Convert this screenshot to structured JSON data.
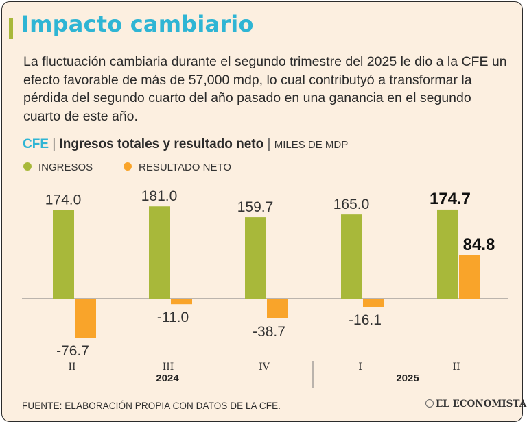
{
  "title": "Impacto cambiario",
  "description": "La fluctuación cambiaria durante el segundo trimestre del 2025 le dio a la CFE un efecto favorable de más de 57,000 mdp, lo cual contributyó a transformar la pérdida del segundo cuarto del año pasado en una ganancia en el segundo cuarto de este año.",
  "chart_header": {
    "brand": "CFE",
    "separator": "|",
    "main": "Ingresos totales y resultado neto",
    "unit": "MILES DE MDP"
  },
  "source": "FUENTE: ELABORACIÓN PROPIA CON DATOS DE LA CFE.",
  "logo_text": "EL ECONOMISTA",
  "colors": {
    "ingresos": "#a8b83a",
    "resultado": "#f9a42a",
    "title": "#2fb5d4",
    "background": "#fcefe0"
  },
  "chart_data": {
    "type": "bar",
    "categories": [
      "II",
      "III",
      "IV",
      "I",
      "II"
    ],
    "value_labels": {
      "ingresos": [
        "174.0",
        "181.0",
        "159.7",
        "165.0",
        "174.7"
      ],
      "resultado": [
        "-76.7",
        "-11.0",
        "-38.7",
        "-16.1",
        "84.8"
      ]
    },
    "highlight_index": 4,
    "groups": [
      {
        "label": "2024",
        "categories": [
          "II",
          "III",
          "IV"
        ]
      },
      {
        "label": "2025",
        "categories": [
          "I",
          "II"
        ]
      }
    ],
    "series": [
      {
        "name": "INGRESOS",
        "values": [
          174.0,
          181.0,
          159.7,
          165.0,
          174.7
        ]
      },
      {
        "name": "RESULTADO NETO",
        "values": [
          -76.7,
          -11.0,
          -38.7,
          -16.1,
          84.8
        ]
      }
    ],
    "title": "Ingresos totales y resultado neto",
    "ylabel": "MILES DE MDP",
    "ylim": [
      -80,
      190
    ],
    "grid": false,
    "legend": "top-left"
  }
}
